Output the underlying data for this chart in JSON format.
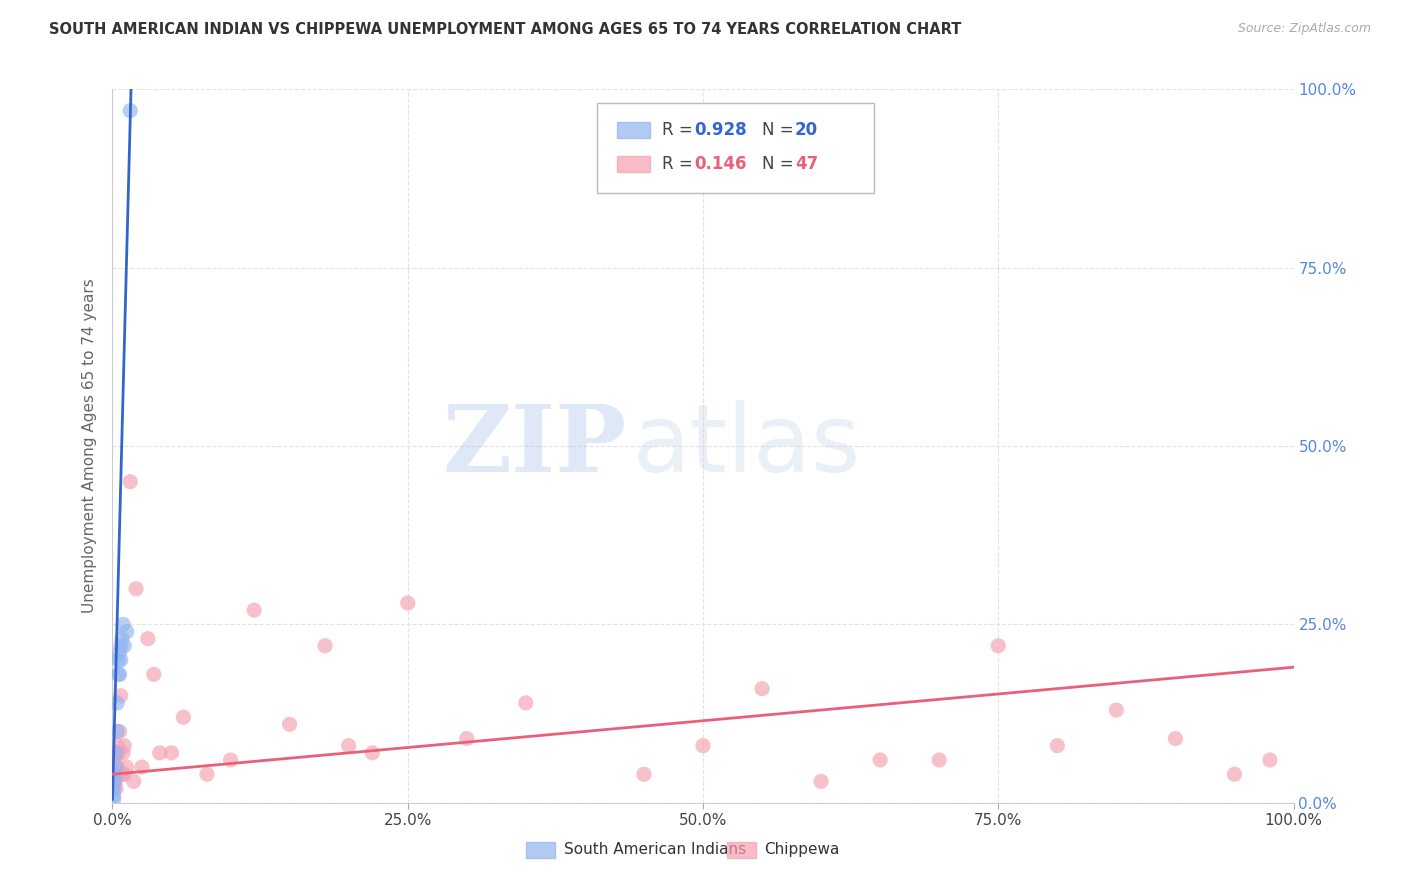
{
  "title": "SOUTH AMERICAN INDIAN VS CHIPPEWA UNEMPLOYMENT AMONG AGES 65 TO 74 YEARS CORRELATION CHART",
  "source": "Source: ZipAtlas.com",
  "ylabel": "Unemployment Among Ages 65 to 74 years",
  "xticklabels": [
    "0.0%",
    "25.0%",
    "50.0%",
    "75.0%",
    "100.0%"
  ],
  "ytick_right_labels": [
    "100.0%",
    "75.0%",
    "50.0%",
    "25.0%",
    "0.0%"
  ],
  "xticks": [
    0,
    0.25,
    0.5,
    0.75,
    1.0
  ],
  "yticks": [
    0,
    0.25,
    0.5,
    0.75,
    1.0
  ],
  "blue_R": 0.928,
  "blue_N": 20,
  "pink_R": 0.146,
  "pink_N": 47,
  "blue_color": "#92B4F0",
  "pink_color": "#F4A0B0",
  "blue_line_color": "#3366CC",
  "pink_line_color": "#E8607A",
  "legend_blue_label": "South American Indians",
  "legend_pink_label": "Chippewa",
  "watermark_zip": "ZIP",
  "watermark_atlas": "atlas",
  "blue_scatter_x": [
    0.001,
    0.001,
    0.001,
    0.002,
    0.002,
    0.003,
    0.003,
    0.004,
    0.004,
    0.005,
    0.005,
    0.006,
    0.006,
    0.007,
    0.007,
    0.008,
    0.009,
    0.01,
    0.012,
    0.015
  ],
  "blue_scatter_y": [
    0.005,
    0.01,
    0.02,
    0.03,
    0.04,
    0.05,
    0.07,
    0.1,
    0.14,
    0.18,
    0.2,
    0.18,
    0.21,
    0.2,
    0.22,
    0.23,
    0.25,
    0.22,
    0.24,
    0.97
  ],
  "blue_trend_x": [
    0.0,
    0.016
  ],
  "blue_trend_y": [
    0.005,
    1.02
  ],
  "pink_trend_x": [
    0.0,
    1.0
  ],
  "pink_trend_y": [
    0.04,
    0.19
  ],
  "pink_scatter_x": [
    0.001,
    0.001,
    0.002,
    0.002,
    0.003,
    0.004,
    0.004,
    0.005,
    0.005,
    0.006,
    0.007,
    0.008,
    0.009,
    0.01,
    0.01,
    0.012,
    0.015,
    0.018,
    0.02,
    0.025,
    0.03,
    0.035,
    0.04,
    0.05,
    0.06,
    0.08,
    0.1,
    0.12,
    0.15,
    0.18,
    0.2,
    0.22,
    0.25,
    0.3,
    0.35,
    0.45,
    0.5,
    0.55,
    0.6,
    0.65,
    0.7,
    0.75,
    0.8,
    0.85,
    0.9,
    0.95,
    0.98
  ],
  "pink_scatter_y": [
    0.02,
    0.07,
    0.03,
    0.06,
    0.02,
    0.05,
    0.08,
    0.04,
    0.07,
    0.1,
    0.15,
    0.04,
    0.07,
    0.04,
    0.08,
    0.05,
    0.45,
    0.03,
    0.3,
    0.05,
    0.23,
    0.18,
    0.07,
    0.07,
    0.12,
    0.04,
    0.06,
    0.27,
    0.11,
    0.22,
    0.08,
    0.07,
    0.28,
    0.09,
    0.14,
    0.04,
    0.08,
    0.16,
    0.03,
    0.06,
    0.06,
    0.22,
    0.08,
    0.13,
    0.09,
    0.04,
    0.06
  ],
  "background_color": "#FFFFFF",
  "grid_color": "#DDDDDD"
}
